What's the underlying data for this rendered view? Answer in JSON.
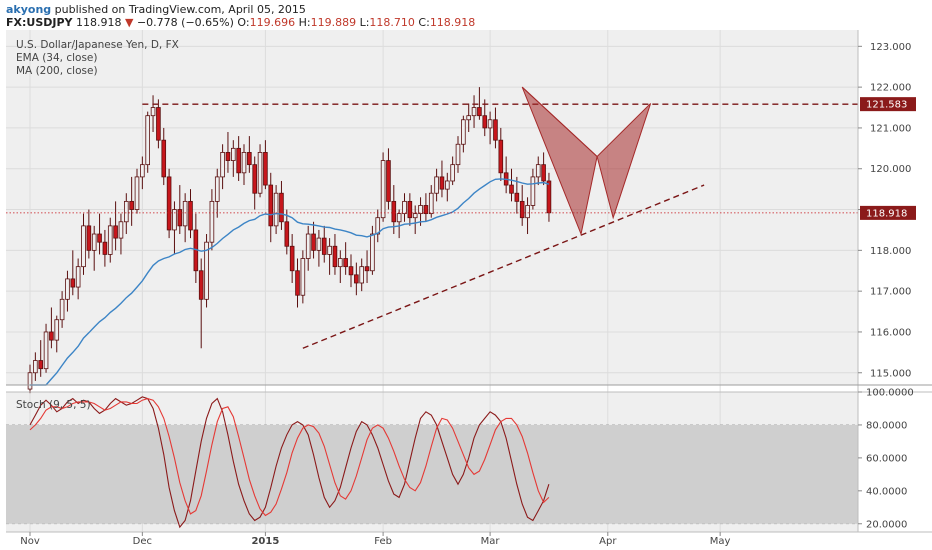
{
  "header": {
    "user": "akyong",
    "published_text": "published on TradingView.com, April 05, 2015",
    "symbol": "FX:USDJPY",
    "last": "118.918",
    "change": "−0.778 (−0.65%)",
    "o_label": "O:",
    "o_value": "119.696",
    "h_label": "H:",
    "h_value": "119.889",
    "l_label": "L:",
    "l_value": "118.710",
    "c_label": "C:",
    "c_value": "118.918"
  },
  "legend": {
    "title": "U.S. Dollar/Japanese Yen, D, FX",
    "ema": "EMA (34, close)",
    "ma": "MA (200, close)",
    "stoch": "Stoch (9, 5, 5)"
  },
  "colors": {
    "up": "#f0f0f0",
    "down": "#c7161c",
    "wick": "#5a0f0f",
    "ema": "#3d85c6",
    "pattern_fill": "#a52a2a",
    "stoch_k": "#8b1a1a",
    "stoch_d": "#e53935",
    "resistance": "#7a1515",
    "price_label": "#8b1a1a"
  },
  "chart_data": {
    "type": "candlestick",
    "price_axis": {
      "range": [
        114.7,
        123.4
      ],
      "ticks": [
        "115.000",
        "116.000",
        "117.000",
        "118.000",
        "119.000",
        "120.000",
        "121.000",
        "122.000",
        "123.000"
      ]
    },
    "x_axis": {
      "labels": [
        {
          "text": "Nov",
          "day": 0,
          "bold": false
        },
        {
          "text": "Dec",
          "day": 21,
          "bold": false
        },
        {
          "text": "2015",
          "day": 44,
          "bold": true
        },
        {
          "text": "Feb",
          "day": 66,
          "bold": false
        },
        {
          "text": "Mar",
          "day": 86,
          "bold": false
        },
        {
          "text": "Apr",
          "day": 108,
          "bold": false
        },
        {
          "text": "May",
          "day": 129,
          "bold": false
        }
      ]
    },
    "price_labels": {
      "resistance": "121.583",
      "current": "118.918"
    },
    "resistance_level": 121.583,
    "current_price": 118.918,
    "trendline": {
      "x1": 51,
      "y1": 115.6,
      "x2": 126,
      "y2": 119.6
    },
    "pattern": [
      {
        "day": 92,
        "price": 122.0
      },
      {
        "day": 103,
        "price": 118.4
      },
      {
        "day": 106,
        "price": 120.3
      },
      {
        "day": 109,
        "price": 118.8
      },
      {
        "day": 116,
        "price": 121.6
      }
    ],
    "ohlc": [
      [
        114.6,
        115.2,
        114.5,
        115.0
      ],
      [
        115.0,
        115.5,
        114.8,
        115.3
      ],
      [
        115.3,
        115.8,
        114.9,
        115.1
      ],
      [
        115.1,
        116.2,
        115.0,
        116.0
      ],
      [
        116.0,
        116.6,
        115.6,
        115.8
      ],
      [
        115.8,
        116.4,
        115.5,
        116.3
      ],
      [
        116.3,
        117.0,
        116.1,
        116.8
      ],
      [
        116.8,
        117.5,
        116.5,
        117.3
      ],
      [
        117.3,
        118.0,
        116.9,
        117.1
      ],
      [
        117.1,
        117.8,
        116.8,
        117.6
      ],
      [
        117.6,
        118.9,
        117.4,
        118.6
      ],
      [
        118.6,
        119.0,
        117.8,
        118.0
      ],
      [
        118.0,
        118.6,
        117.5,
        118.4
      ],
      [
        118.4,
        118.9,
        117.9,
        118.2
      ],
      [
        118.2,
        118.5,
        117.6,
        117.9
      ],
      [
        117.9,
        118.8,
        117.7,
        118.6
      ],
      [
        118.6,
        119.2,
        118.0,
        118.3
      ],
      [
        118.3,
        118.9,
        117.9,
        118.7
      ],
      [
        118.7,
        119.4,
        118.4,
        119.2
      ],
      [
        119.2,
        119.8,
        118.6,
        119.0
      ],
      [
        119.0,
        120.0,
        118.9,
        119.8
      ],
      [
        119.8,
        120.3,
        119.5,
        120.1
      ],
      [
        120.1,
        121.4,
        119.9,
        121.3
      ],
      [
        121.3,
        121.8,
        120.9,
        121.5
      ],
      [
        121.5,
        121.7,
        120.5,
        120.7
      ],
      [
        120.7,
        121.0,
        119.6,
        119.8
      ],
      [
        119.8,
        120.0,
        118.3,
        118.5
      ],
      [
        118.5,
        119.2,
        117.9,
        119.0
      ],
      [
        119.0,
        119.6,
        118.4,
        118.6
      ],
      [
        118.6,
        119.4,
        118.2,
        119.2
      ],
      [
        119.2,
        119.5,
        118.3,
        118.5
      ],
      [
        118.5,
        118.9,
        117.2,
        117.5
      ],
      [
        117.5,
        117.8,
        115.6,
        116.8
      ],
      [
        116.8,
        118.4,
        116.6,
        118.2
      ],
      [
        118.2,
        119.5,
        118.0,
        119.2
      ],
      [
        119.2,
        120.0,
        118.8,
        119.8
      ],
      [
        119.8,
        120.6,
        119.5,
        120.4
      ],
      [
        120.4,
        120.9,
        119.9,
        120.2
      ],
      [
        120.2,
        120.7,
        119.8,
        120.5
      ],
      [
        120.5,
        120.8,
        119.7,
        119.9
      ],
      [
        119.9,
        120.6,
        119.6,
        120.4
      ],
      [
        120.4,
        120.8,
        119.9,
        120.1
      ],
      [
        120.1,
        120.3,
        119.0,
        119.4
      ],
      [
        119.4,
        120.6,
        119.3,
        120.4
      ],
      [
        120.4,
        120.7,
        119.5,
        119.6
      ],
      [
        119.6,
        119.9,
        118.2,
        118.6
      ],
      [
        118.6,
        119.6,
        118.4,
        119.4
      ],
      [
        119.4,
        119.7,
        118.5,
        118.7
      ],
      [
        118.7,
        119.0,
        117.9,
        118.1
      ],
      [
        118.1,
        118.4,
        117.2,
        117.5
      ],
      [
        117.5,
        117.8,
        116.6,
        116.9
      ],
      [
        116.9,
        118.0,
        116.7,
        117.8
      ],
      [
        117.8,
        118.6,
        117.5,
        118.4
      ],
      [
        118.4,
        118.7,
        117.8,
        118.0
      ],
      [
        118.0,
        118.5,
        117.6,
        118.3
      ],
      [
        118.3,
        118.6,
        117.7,
        117.9
      ],
      [
        117.9,
        118.3,
        117.4,
        118.1
      ],
      [
        118.1,
        118.4,
        117.4,
        117.6
      ],
      [
        117.6,
        118.0,
        117.2,
        117.8
      ],
      [
        117.8,
        118.2,
        117.4,
        117.6
      ],
      [
        117.6,
        117.9,
        117.1,
        117.4
      ],
      [
        117.4,
        117.7,
        116.9,
        117.2
      ],
      [
        117.2,
        117.8,
        117.0,
        117.6
      ],
      [
        117.6,
        118.0,
        117.2,
        117.5
      ],
      [
        117.5,
        118.6,
        117.4,
        118.4
      ],
      [
        118.4,
        119.0,
        118.2,
        118.8
      ],
      [
        118.8,
        120.4,
        118.7,
        120.2
      ],
      [
        120.2,
        120.5,
        119.0,
        119.2
      ],
      [
        119.2,
        119.6,
        118.4,
        118.7
      ],
      [
        118.7,
        119.0,
        118.3,
        118.9
      ],
      [
        118.9,
        119.4,
        118.7,
        119.2
      ],
      [
        119.2,
        119.4,
        118.6,
        118.8
      ],
      [
        118.8,
        119.1,
        118.4,
        118.9
      ],
      [
        118.9,
        119.3,
        118.6,
        119.1
      ],
      [
        119.1,
        119.4,
        118.7,
        118.9
      ],
      [
        118.9,
        119.6,
        118.8,
        119.4
      ],
      [
        119.4,
        120.0,
        119.2,
        119.8
      ],
      [
        119.8,
        120.2,
        119.3,
        119.5
      ],
      [
        119.5,
        119.9,
        119.2,
        119.7
      ],
      [
        119.7,
        120.3,
        119.6,
        120.1
      ],
      [
        120.1,
        120.8,
        119.9,
        120.6
      ],
      [
        120.6,
        121.3,
        120.4,
        121.2
      ],
      [
        121.2,
        121.6,
        120.9,
        121.3
      ],
      [
        121.3,
        121.8,
        121.0,
        121.5
      ],
      [
        121.5,
        122.0,
        121.2,
        121.3
      ],
      [
        121.3,
        121.7,
        120.8,
        121.0
      ],
      [
        121.0,
        121.4,
        120.6,
        121.2
      ],
      [
        121.2,
        121.5,
        120.5,
        120.7
      ],
      [
        120.7,
        121.0,
        119.7,
        119.9
      ],
      [
        119.9,
        120.3,
        119.4,
        119.6
      ],
      [
        119.6,
        120.0,
        119.2,
        119.4
      ],
      [
        119.4,
        119.8,
        118.9,
        119.2
      ],
      [
        119.2,
        119.6,
        118.6,
        118.8
      ],
      [
        118.8,
        119.3,
        118.4,
        119.1
      ],
      [
        119.1,
        120.0,
        119.0,
        119.8
      ],
      [
        119.8,
        120.3,
        119.6,
        120.1
      ],
      [
        120.1,
        120.4,
        119.6,
        119.7
      ],
      [
        119.7,
        119.9,
        118.7,
        118.92
      ]
    ],
    "ema34": [
      114.2,
      114.35,
      114.5,
      114.7,
      114.85,
      115.0,
      115.18,
      115.36,
      115.5,
      115.65,
      115.85,
      115.98,
      116.12,
      116.25,
      116.35,
      116.48,
      116.58,
      116.7,
      116.84,
      116.95,
      117.1,
      117.25,
      117.45,
      117.63,
      117.74,
      117.8,
      117.84,
      117.91,
      117.95,
      118.02,
      118.05,
      118.02,
      117.98,
      118.0,
      118.07,
      118.17,
      118.29,
      118.39,
      118.5,
      118.57,
      118.66,
      118.73,
      118.76,
      118.85,
      118.89,
      118.87,
      118.9,
      118.89,
      118.86,
      118.8,
      118.69,
      118.65,
      118.64,
      118.62,
      118.6,
      118.57,
      118.56,
      118.52,
      118.5,
      118.47,
      118.43,
      118.37,
      118.36,
      118.33,
      118.37,
      118.42,
      118.53,
      118.57,
      118.58,
      118.6,
      118.64,
      118.65,
      118.67,
      118.7,
      118.71,
      118.75,
      118.81,
      118.85,
      118.89,
      118.94,
      119.03,
      119.16,
      119.27,
      119.4,
      119.5,
      119.59,
      119.68,
      119.74,
      119.75,
      119.74,
      119.72,
      119.69,
      119.65,
      119.62,
      119.63,
      119.65,
      119.66,
      119.62
    ],
    "stoch_axis": {
      "range": [
        15,
        100
      ],
      "ticks": [
        "20.0000",
        "40.0000",
        "60.0000",
        "80.0000",
        "100.0000"
      ],
      "upper_band": 80,
      "lower_band": 20
    },
    "stoch_k": [
      80,
      86,
      92,
      95,
      92,
      88,
      90,
      94,
      96,
      93,
      95,
      94,
      90,
      87,
      89,
      93,
      96,
      94,
      92,
      93,
      95,
      97,
      96,
      90,
      78,
      62,
      42,
      28,
      18,
      22,
      34,
      52,
      70,
      84,
      93,
      96,
      88,
      74,
      58,
      44,
      34,
      26,
      22,
      24,
      30,
      42,
      55,
      66,
      74,
      80,
      82,
      80,
      74,
      62,
      48,
      36,
      30,
      34,
      42,
      54,
      66,
      76,
      82,
      80,
      74,
      66,
      56,
      46,
      38,
      36,
      44,
      58,
      72,
      84,
      88,
      86,
      80,
      70,
      60,
      50,
      44,
      50,
      60,
      72,
      80,
      84,
      88,
      86,
      82,
      72,
      58,
      44,
      32,
      24,
      22,
      28,
      34,
      44
    ],
    "stoch_d": [
      77,
      80,
      84,
      89,
      91,
      91,
      90,
      91,
      93,
      94,
      94,
      94,
      93,
      91,
      89,
      90,
      92,
      94,
      94,
      93,
      93,
      95,
      96,
      95,
      91,
      84,
      73,
      60,
      45,
      34,
      26,
      28,
      37,
      52,
      68,
      82,
      90,
      91,
      85,
      73,
      60,
      47,
      37,
      29,
      25,
      27,
      32,
      41,
      51,
      63,
      72,
      78,
      80,
      79,
      75,
      67,
      56,
      45,
      37,
      35,
      40,
      49,
      60,
      71,
      78,
      80,
      78,
      72,
      64,
      55,
      47,
      42,
      40,
      45,
      55,
      67,
      78,
      84,
      83,
      78,
      70,
      62,
      54,
      50,
      52,
      59,
      68,
      77,
      82,
      84,
      84,
      80,
      73,
      63,
      51,
      40,
      33,
      36
    ]
  }
}
